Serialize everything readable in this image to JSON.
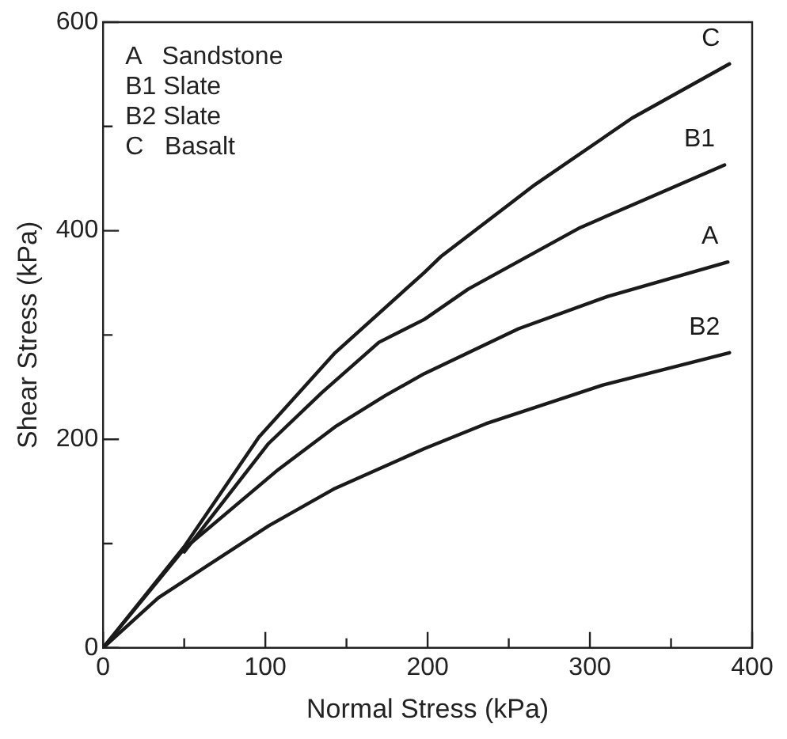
{
  "chart_data": {
    "type": "line",
    "xlabel": "Normal Stress (kPa)",
    "ylabel": "Shear Stress (kPa)",
    "annotations": [
      "A   Sandstone",
      "B1 Slate",
      "B2 Slate",
      "C   Basalt"
    ],
    "series": [
      {
        "name": "C",
        "color": "#1a1a1a",
        "x": [
          0,
          50,
          96,
          143,
          198,
          208,
          266,
          326,
          386
        ],
        "values": [
          0,
          97,
          202,
          283,
          360,
          375,
          444,
          508,
          560
        ]
      },
      {
        "name": "B1",
        "color": "#1a1a1a",
        "x": [
          50,
          102,
          135,
          170,
          198,
          225,
          294,
          383
        ],
        "values": [
          92,
          196,
          245,
          293,
          315,
          344,
          403,
          463
        ]
      },
      {
        "name": "A",
        "color": "#1a1a1a",
        "x": [
          0,
          50,
          108,
          143,
          174,
          198,
          256,
          311,
          385
        ],
        "values": [
          0,
          95,
          171,
          212,
          242,
          263,
          306,
          337,
          370
        ]
      },
      {
        "name": "B2",
        "color": "#1a1a1a",
        "x": [
          0,
          34,
          102,
          143,
          198,
          236,
          308,
          386
        ],
        "values": [
          0,
          48,
          117,
          153,
          191,
          215,
          252,
          283
        ]
      }
    ],
    "xlim": [
      0,
      400
    ],
    "xticks": [
      0,
      {
        "value": 50,
        "label": null
      },
      100,
      {
        "value": 150,
        "label": null
      },
      200,
      {
        "value": 250,
        "label": null
      },
      300,
      {
        "value": 350,
        "label": null
      },
      400
    ],
    "ylim": [
      0,
      600
    ],
    "yticks": [
      0,
      {
        "value": 100,
        "label": null
      },
      200,
      {
        "value": 300,
        "label": null
      },
      400,
      {
        "value": 500,
        "label": null
      },
      600
    ],
    "grid": false,
    "legend": false,
    "marker": "none",
    "line_style": "solid"
  }
}
